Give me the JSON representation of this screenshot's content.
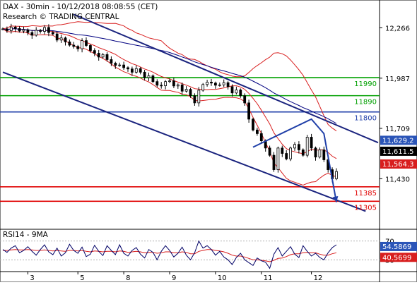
{
  "header": {
    "title": "DAX - 30min - 10/12/2018 08:08:55 (CET)",
    "source": "Research © TRADING CENTRAL"
  },
  "chart_data": [
    {
      "type": "candlestick",
      "panel": "price",
      "x_ticks": [
        "3",
        "5",
        "8",
        "9",
        "10",
        "11",
        "12"
      ],
      "y_ticks": [
        12266,
        11987,
        11709,
        11430
      ],
      "ylim": [
        11150,
        12420
      ],
      "xlim": [
        0,
        90
      ],
      "grid": false,
      "tick_positions": [
        {
          "label": "3",
          "x": 6
        },
        {
          "label": "5",
          "x": 18
        },
        {
          "label": "8",
          "x": 29
        },
        {
          "label": "9",
          "x": 40
        },
        {
          "label": "10",
          "x": 51
        },
        {
          "label": "11",
          "x": 62
        },
        {
          "label": "12",
          "x": 74
        }
      ],
      "horizontal_levels": [
        {
          "label": "11990",
          "value": 11990,
          "color": "#00a000"
        },
        {
          "label": "11890",
          "value": 11890,
          "color": "#00a000"
        },
        {
          "label": "11800",
          "value": 11800,
          "color": "#1f3fa8"
        },
        {
          "label": "11385",
          "value": 11385,
          "color": "#e00000"
        },
        {
          "label": "11305",
          "value": 11305,
          "color": "#e00000"
        }
      ],
      "price_tags": [
        {
          "label": "11,629.2",
          "value": 11629.2,
          "bg": "#2b55b8",
          "fg": "#ffffff"
        },
        {
          "label": "11,611.5",
          "value": 11611.5,
          "bg": "#000000",
          "fg": "#ffffff"
        },
        {
          "label": "11,564.3",
          "value": 11564.3,
          "bg": "#d81e1e",
          "fg": "#ffffff"
        }
      ],
      "channel_lines": [
        {
          "from": [
            17,
            12340
          ],
          "to": [
            90,
            11630
          ]
        },
        {
          "from": [
            0,
            12020
          ],
          "to": [
            87,
            11250
          ]
        }
      ],
      "projection": [
        [
          60,
          11605
        ],
        [
          74,
          11760
        ],
        [
          77,
          11680
        ],
        [
          80,
          11300
        ]
      ],
      "series": [
        {
          "name": "close",
          "values": [
            12260,
            12250,
            12270,
            12262,
            12248,
            12255,
            12240,
            12225,
            12252,
            12246,
            12268,
            12240,
            12232,
            12198,
            12210,
            12188,
            12170,
            12163,
            12150,
            12195,
            12168,
            12140,
            12125,
            12104,
            12118,
            12090,
            12070,
            12058,
            12060,
            12045,
            12038,
            12020,
            12040,
            12020,
            11990,
            12000,
            11968,
            11948,
            11945,
            11968,
            11972,
            11944,
            11950,
            11915,
            11925,
            11890,
            11850,
            11920,
            11952,
            11965,
            11960,
            11948,
            11950,
            11962,
            11940,
            11905,
            11922,
            11890,
            11850,
            11760,
            11700,
            11680,
            11640,
            11600,
            11560,
            11480,
            11600,
            11570,
            11540,
            11600,
            11620,
            11590,
            11560,
            11660,
            11600,
            11550,
            11590,
            11535,
            11480,
            11430,
            11470
          ]
        }
      ]
    },
    {
      "type": "line",
      "panel": "indicator",
      "title": "RSI14 - 9MA",
      "y_ticks": [
        70,
        30
      ],
      "ylim": [
        5,
        95
      ],
      "tags": [
        {
          "label": "54.5869",
          "value": 54.5869,
          "bg": "#2b55b8"
        },
        {
          "label": "40.5699",
          "value": 40.5699,
          "bg": "#d81e1e"
        }
      ],
      "series": [
        {
          "values": [
            52,
            46,
            55,
            60,
            45,
            50,
            58,
            48,
            40,
            52,
            62,
            47,
            41,
            55,
            38,
            45,
            63,
            50,
            44,
            57,
            37,
            42,
            61,
            48,
            39,
            60,
            50,
            41,
            62,
            44,
            38,
            50,
            56,
            42,
            34,
            52,
            46,
            30,
            48,
            60,
            50,
            36,
            44,
            57,
            40,
            30,
            45,
            70,
            55,
            60,
            52,
            40,
            48,
            36,
            30,
            20,
            35,
            44,
            30,
            24,
            18,
            34,
            28,
            25,
            12,
            42,
            56,
            38,
            48,
            58,
            42,
            35,
            60,
            48,
            38,
            44,
            35,
            30,
            45,
            56,
            62
          ]
        },
        {
          "values": [
            50,
            50,
            51,
            52,
            51,
            51,
            52,
            51,
            50,
            50,
            51,
            50,
            49,
            50,
            49,
            48,
            50,
            50,
            49,
            50,
            48,
            47,
            49,
            48,
            47,
            48,
            48,
            47,
            49,
            48,
            46,
            47,
            48,
            47,
            45,
            46,
            46,
            44,
            45,
            47,
            47,
            45,
            45,
            47,
            46,
            43,
            43,
            48,
            50,
            52,
            52,
            50,
            49,
            47,
            44,
            40,
            38,
            38,
            36,
            33,
            30,
            30,
            29,
            28,
            26,
            29,
            33,
            34,
            37,
            41,
            43,
            43,
            45,
            46,
            45,
            45,
            42,
            40,
            40,
            43,
            45
          ]
        }
      ]
    }
  ],
  "colors": {
    "price": "#000000",
    "fast_ma": "#000080",
    "bollinger": "#d81e1e",
    "rsi": "#000066",
    "rsi_ma": "#d81e1e"
  }
}
